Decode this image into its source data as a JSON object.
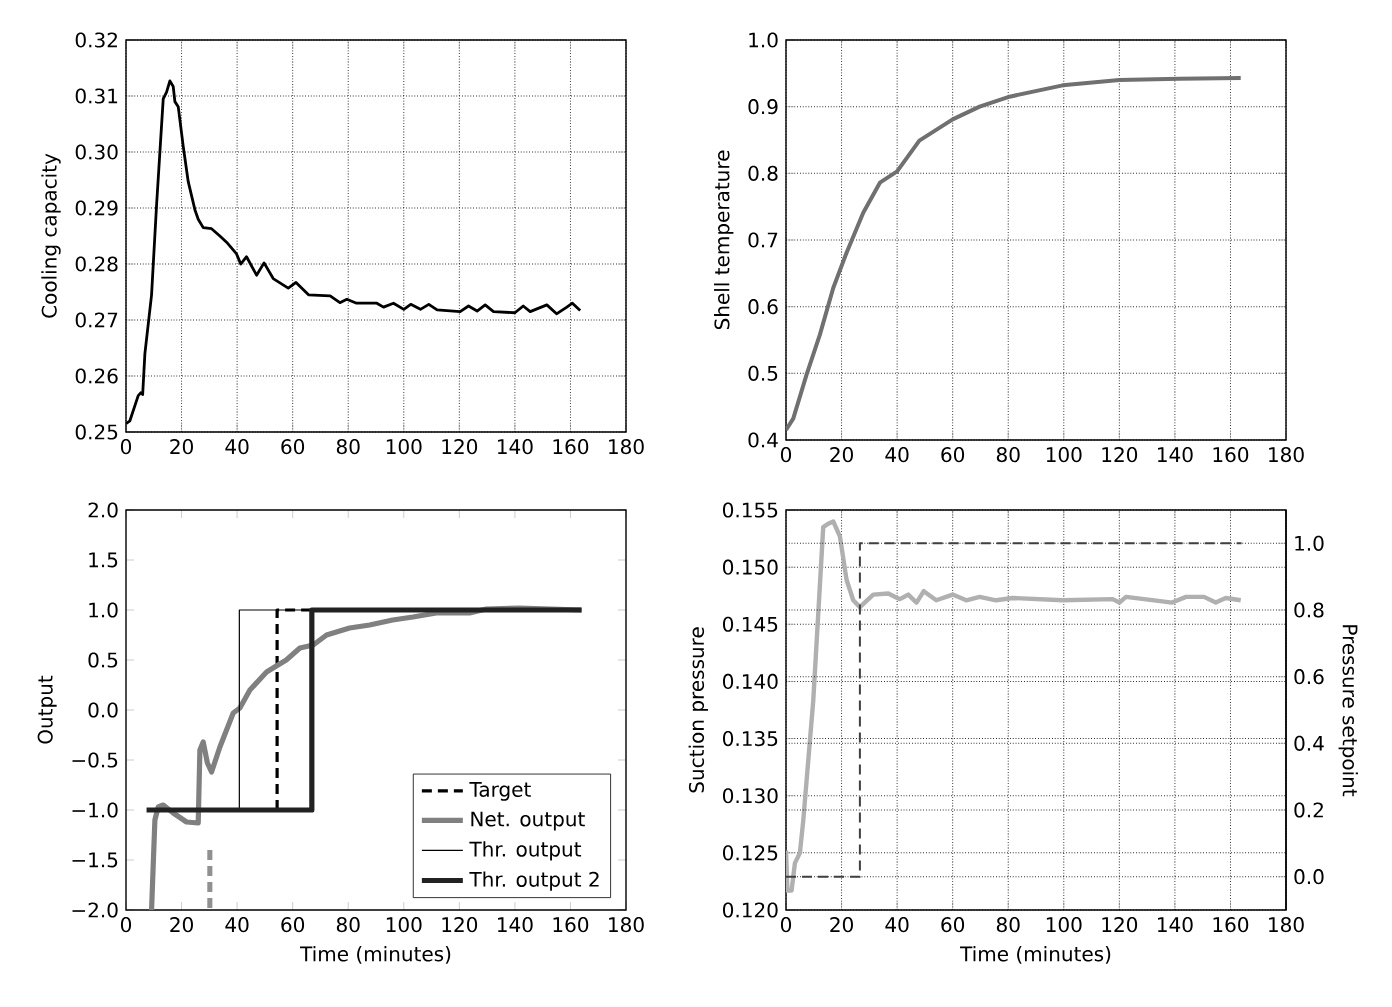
{
  "chart_data": [
    {
      "type": "line",
      "ylabel": "Cooling capacity",
      "xlim": [
        0,
        180
      ],
      "ylim": [
        0.25,
        0.32
      ],
      "xticks": [
        0,
        20,
        40,
        60,
        80,
        100,
        120,
        140,
        160,
        180
      ],
      "yticks": [
        0.25,
        0.26,
        0.27,
        0.28,
        0.29,
        {
          "value": 0.3,
          "label": "0.30"
        },
        0.31,
        0.32
      ],
      "grid": true,
      "series": [
        {
          "color": "#000000",
          "x": [
            0,
            1.4,
            4.4,
            5.3,
            6,
            6.8,
            9.2,
            11,
            13.4,
            14.6,
            15.8,
            17,
            17.6,
            18.8,
            20.6,
            22.4,
            24.8,
            26,
            27.8,
            30.8,
            33.8,
            36.2,
            39.8,
            41.3,
            43.4,
            47,
            49.7,
            53,
            58.4,
            61.2,
            65.7,
            73.5,
            77,
            79.5,
            83,
            90.3,
            92.7,
            96.3,
            100,
            102.5,
            106,
            109,
            112,
            120.3,
            123.3,
            126.4,
            129.3,
            132.3,
            140,
            143,
            145.5,
            151.5,
            155,
            158.7,
            160.7,
            163.5
          ],
          "values": [
            0.2515,
            0.252,
            0.2565,
            0.257,
            0.2567,
            0.264,
            0.2745,
            0.2905,
            0.3095,
            0.3107,
            0.3127,
            0.3117,
            0.309,
            0.3081,
            0.301,
            0.2947,
            0.2897,
            0.288,
            0.2865,
            0.2863,
            0.285,
            0.2839,
            0.2818,
            0.28,
            0.2813,
            0.278,
            0.2802,
            0.2774,
            0.2757,
            0.2767,
            0.2745,
            0.2743,
            0.2731,
            0.2737,
            0.273,
            0.273,
            0.2723,
            0.273,
            0.2719,
            0.2728,
            0.2719,
            0.2728,
            0.2718,
            0.2715,
            0.2725,
            0.2716,
            0.2727,
            0.2715,
            0.2713,
            0.2725,
            0.2715,
            0.2727,
            0.2711,
            0.2723,
            0.273,
            0.2717
          ]
        }
      ]
    },
    {
      "type": "line",
      "ylabel": "Shell temperature",
      "xlim": [
        0,
        180
      ],
      "ylim": [
        0.4,
        1.0
      ],
      "xticks": [
        0,
        20,
        40,
        60,
        80,
        100,
        120,
        140,
        160,
        180
      ],
      "yticks": [
        0.4,
        0.5,
        0.6,
        0.7,
        0.8,
        0.9,
        {
          "value": 1.0,
          "label": "1.0"
        }
      ],
      "grid": true,
      "series": [
        {
          "color": "#707070",
          "x": [
            0,
            2.6,
            7.4,
            12.2,
            17,
            21.8,
            27.8,
            33.8,
            40,
            48,
            60,
            69.7,
            80.5,
            99.6,
            120,
            141.6,
            163.7
          ],
          "values": [
            0.415,
            0.432,
            0.498,
            0.558,
            0.628,
            0.681,
            0.741,
            0.786,
            0.803,
            0.849,
            0.881,
            0.9,
            0.915,
            0.932,
            0.94,
            0.942,
            0.943
          ]
        }
      ]
    },
    {
      "type": "line",
      "ylabel": "Output",
      "xlabel": "Time (minutes)",
      "xlim": [
        0,
        180
      ],
      "ylim": [
        -2.0,
        2.0
      ],
      "xticks": [
        0,
        20,
        40,
        60,
        80,
        100,
        120,
        140,
        160,
        180
      ],
      "yticks": [
        {
          "value": -2.0,
          "label": "−2.0"
        },
        {
          "value": -1.5,
          "label": "−1.5"
        },
        {
          "value": -1.0,
          "label": "−1.0"
        },
        {
          "value": -0.5,
          "label": "−0.5"
        },
        {
          "value": 0,
          "label": "0.0"
        },
        0.5,
        {
          "value": 1.0,
          "label": "1.0"
        },
        1.5,
        {
          "value": 2.0,
          "label": "2.0"
        }
      ],
      "legend": "bottom right",
      "series": [
        {
          "name": "Target",
          "color": "#000000",
          "line_style": "dashed",
          "x": [
            54.4,
            54.4,
            66.9
          ],
          "values": [
            -1,
            1,
            1
          ]
        },
        {
          "name": "Net. output",
          "color": "#808080",
          "x": [
            9.2,
            10.4,
            11.6,
            13.4,
            17,
            21.8,
            26,
            26.6,
            27.8,
            29.3,
            30.8,
            33.8,
            38.6,
            41,
            44.6,
            50.6,
            54.1,
            57.7,
            62.6,
            67.4,
            72.2,
            80.5,
            87.7,
            96,
            103.3,
            111.7,
            123.7,
            129.7,
            141.7,
            164
          ],
          "values": [
            -2.0,
            -1.1,
            -0.97,
            -0.95,
            -1.03,
            -1.12,
            -1.13,
            -0.4,
            -0.32,
            -0.53,
            -0.62,
            -0.37,
            -0.03,
            0.02,
            0.2,
            0.38,
            0.44,
            0.5,
            0.62,
            0.65,
            0.75,
            0.82,
            0.85,
            0.9,
            0.93,
            0.97,
            0.97,
            1.01,
            1.02,
            1.0
          ]
        },
        {
          "name": "Thr. output",
          "color": "#000000",
          "x": [
            40.8,
            40.8,
            66.9
          ],
          "values": [
            -1,
            1,
            1
          ]
        },
        {
          "name": "Thr. output 2",
          "color": "#222222",
          "x": [
            7.4,
            66.9,
            66.9,
            164
          ],
          "values": [
            -1,
            -1,
            1,
            1
          ]
        },
        {
          "color": "#909090",
          "line_style": "dashed",
          "x": [
            30.2,
            30.2
          ],
          "values": [
            -1.4,
            -2.0
          ]
        }
      ]
    },
    {
      "type": "line",
      "ylabel": "Suction pressure",
      "y2label": "Pressure setpoint",
      "xlabel": "Time (minutes)",
      "xlim": [
        0,
        180
      ],
      "ylim": [
        0.12,
        0.155
      ],
      "y2lim": [
        -0.1,
        1.1
      ],
      "xticks": [
        0,
        20,
        40,
        60,
        80,
        100,
        120,
        140,
        160,
        180
      ],
      "yticks": [
        {
          "value": 0.12,
          "label": "0.120"
        },
        0.125,
        {
          "value": 0.13,
          "label": "0.130"
        },
        0.135,
        {
          "value": 0.14,
          "label": "0.140"
        },
        0.145,
        {
          "value": 0.15,
          "label": "0.150"
        },
        0.155
      ],
      "y2ticks": [
        {
          "value": 0,
          "label": "0.0"
        },
        0.2,
        0.4,
        0.6,
        0.8,
        {
          "value": 1.0,
          "label": "1.0"
        }
      ],
      "grid": true,
      "series": [
        {
          "color": "#b0b0b0",
          "x": [
            0,
            0.5,
            2,
            3.2,
            5,
            6.2,
            9.8,
            13.4,
            15.2,
            17,
            19.4,
            21.8,
            24.2,
            26.6,
            31.4,
            36.8,
            41,
            44,
            47,
            49.6,
            54.1,
            60,
            64.9,
            69.7,
            75.6,
            81.7,
            99.6,
            117.6,
            120,
            122.4,
            139,
            144,
            150.5,
            154.7,
            158.3,
            163.7
          ],
          "values": [
            0.1252,
            0.1217,
            0.1217,
            0.1241,
            0.125,
            0.1278,
            0.1383,
            0.1535,
            0.1538,
            0.154,
            0.1527,
            0.1489,
            0.1471,
            0.1465,
            0.1476,
            0.1477,
            0.1472,
            0.1476,
            0.1469,
            0.1479,
            0.1471,
            0.1476,
            0.1471,
            0.1474,
            0.1471,
            0.1473,
            0.1471,
            0.1472,
            0.1469,
            0.1474,
            0.1469,
            0.1474,
            0.1474,
            0.1469,
            0.1473,
            0.1471
          ]
        },
        {
          "color": "#404040",
          "axis": "y2",
          "line_style": "dashed",
          "x": [
            0,
            26.6,
            26.6,
            164
          ],
          "values": [
            0,
            0,
            1,
            1
          ]
        }
      ]
    }
  ]
}
